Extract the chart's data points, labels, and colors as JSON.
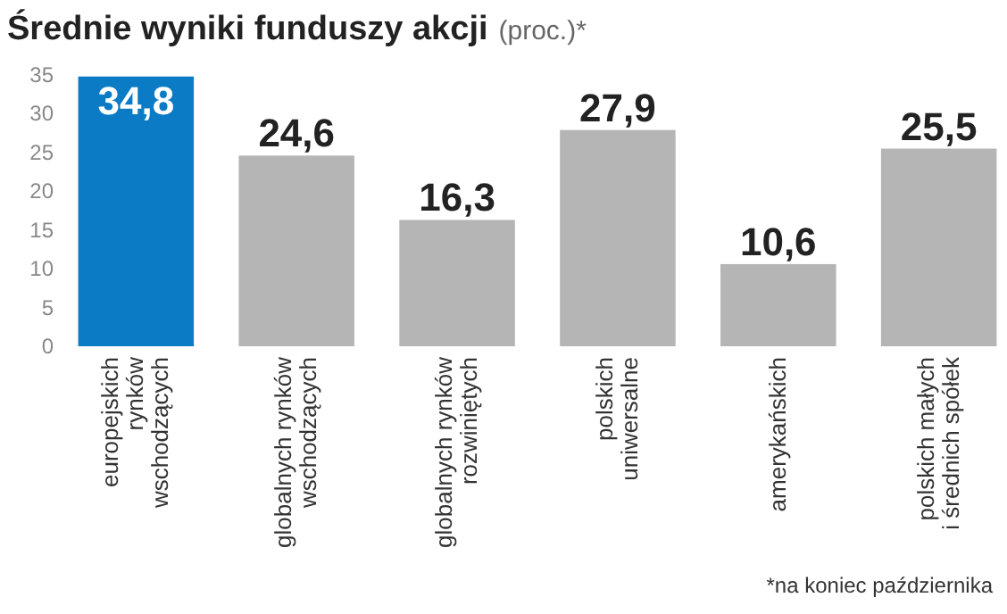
{
  "chart_data": {
    "type": "bar",
    "title": "Średnie wyniki funduszy akcji",
    "subtitle": "(proc.)*",
    "categories": [
      "europejskich\nrynków\nwschodzących",
      "globalnych rynków\nwschodzących",
      "globalnych rynków\nrozwiniętych",
      "polskich\nuniwersalne",
      "amerykańskich",
      "polskich małych\ni średnich spółek"
    ],
    "values": [
      34.8,
      24.6,
      16.3,
      27.9,
      10.6,
      25.5
    ],
    "colors": [
      "#0a7bc4",
      "#b5b5b5",
      "#b5b5b5",
      "#b5b5b5",
      "#b5b5b5",
      "#b5b5b5"
    ],
    "value_labels": [
      "34,8",
      "24,6",
      "16,3",
      "27,9",
      "10,6",
      "25,5"
    ],
    "ylim": [
      0,
      35
    ],
    "yticks": [
      0,
      5,
      10,
      15,
      20,
      25,
      30,
      35
    ],
    "annotations": [
      "*na koniec października"
    ]
  }
}
